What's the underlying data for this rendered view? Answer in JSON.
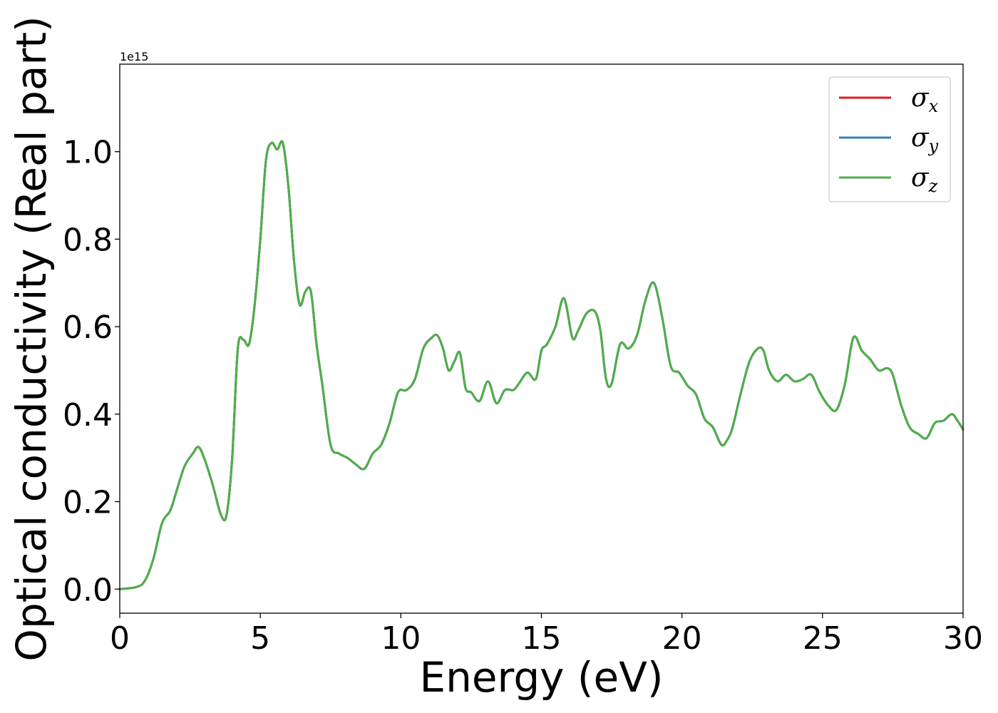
{
  "chart_data": {
    "type": "line",
    "title": "",
    "xlabel": "Energy (eV)",
    "ylabel": "Optical conductivity (Real part)",
    "y_offset_text": "1e15",
    "xlim": [
      0,
      30
    ],
    "ylim": [
      -0.055,
      1.2
    ],
    "x_ticks": [
      0,
      5,
      10,
      15,
      20,
      25,
      30
    ],
    "x_tick_labels": [
      "0",
      "5",
      "10",
      "15",
      "20",
      "25",
      "30"
    ],
    "y_ticks": [
      0.0,
      0.2,
      0.4,
      0.6,
      0.8,
      1.0
    ],
    "y_tick_labels": [
      "0.0",
      "0.2",
      "0.4",
      "0.6",
      "0.8",
      "1.0"
    ],
    "grid": false,
    "legend_position": "top-right",
    "x": [
      0,
      0.6,
      0.9,
      1.2,
      1.5,
      1.8,
      2.0,
      2.3,
      2.6,
      2.8,
      3.0,
      3.3,
      3.6,
      3.8,
      4.0,
      4.2,
      4.4,
      4.6,
      4.8,
      5.0,
      5.2,
      5.4,
      5.6,
      5.8,
      6.0,
      6.2,
      6.4,
      6.6,
      6.8,
      7.0,
      7.2,
      7.5,
      7.8,
      8.1,
      8.4,
      8.7,
      9.0,
      9.3,
      9.6,
      9.9,
      10.2,
      10.5,
      10.8,
      11.1,
      11.3,
      11.5,
      11.7,
      11.9,
      12.1,
      12.3,
      12.5,
      12.8,
      13.1,
      13.4,
      13.7,
      14.0,
      14.2,
      14.5,
      14.8,
      15.0,
      15.2,
      15.5,
      15.8,
      16.1,
      16.3,
      16.6,
      16.9,
      17.1,
      17.3,
      17.5,
      17.8,
      18.1,
      18.4,
      18.7,
      19.0,
      19.3,
      19.6,
      19.9,
      20.2,
      20.5,
      20.8,
      21.1,
      21.4,
      21.6,
      21.8,
      22.1,
      22.4,
      22.7,
      22.9,
      23.1,
      23.4,
      23.7,
      24.0,
      24.3,
      24.6,
      24.9,
      25.2,
      25.5,
      25.8,
      26.1,
      26.4,
      26.7,
      27.0,
      27.3,
      27.5,
      27.8,
      28.1,
      28.4,
      28.7,
      29.0,
      29.3,
      29.6,
      29.8,
      30.0
    ],
    "series": [
      {
        "name": "σx",
        "color": "#e41a1c",
        "values": [
          0.0,
          0.005,
          0.02,
          0.07,
          0.15,
          0.18,
          0.22,
          0.28,
          0.31,
          0.325,
          0.3,
          0.24,
          0.17,
          0.17,
          0.3,
          0.55,
          0.57,
          0.56,
          0.65,
          0.8,
          0.98,
          1.02,
          1.005,
          1.02,
          0.92,
          0.75,
          0.65,
          0.68,
          0.68,
          0.56,
          0.47,
          0.33,
          0.31,
          0.3,
          0.285,
          0.275,
          0.31,
          0.33,
          0.38,
          0.45,
          0.455,
          0.48,
          0.55,
          0.575,
          0.58,
          0.55,
          0.5,
          0.52,
          0.54,
          0.46,
          0.45,
          0.43,
          0.475,
          0.425,
          0.455,
          0.455,
          0.47,
          0.495,
          0.48,
          0.545,
          0.56,
          0.6,
          0.665,
          0.575,
          0.59,
          0.63,
          0.635,
          0.59,
          0.48,
          0.47,
          0.56,
          0.55,
          0.58,
          0.66,
          0.7,
          0.62,
          0.51,
          0.495,
          0.465,
          0.445,
          0.39,
          0.37,
          0.33,
          0.34,
          0.37,
          0.45,
          0.52,
          0.55,
          0.545,
          0.5,
          0.475,
          0.49,
          0.475,
          0.48,
          0.49,
          0.45,
          0.42,
          0.41,
          0.47,
          0.575,
          0.545,
          0.525,
          0.5,
          0.505,
          0.49,
          0.42,
          0.37,
          0.355,
          0.345,
          0.38,
          0.385,
          0.4,
          0.385,
          0.365
        ]
      },
      {
        "name": "σy",
        "color": "#377eb8",
        "values": [
          0.0,
          0.005,
          0.02,
          0.07,
          0.15,
          0.18,
          0.22,
          0.28,
          0.31,
          0.325,
          0.3,
          0.24,
          0.17,
          0.17,
          0.3,
          0.55,
          0.57,
          0.56,
          0.65,
          0.8,
          0.98,
          1.02,
          1.005,
          1.02,
          0.92,
          0.75,
          0.65,
          0.68,
          0.68,
          0.56,
          0.47,
          0.33,
          0.31,
          0.3,
          0.285,
          0.275,
          0.31,
          0.33,
          0.38,
          0.45,
          0.455,
          0.48,
          0.55,
          0.575,
          0.58,
          0.55,
          0.5,
          0.52,
          0.54,
          0.46,
          0.45,
          0.43,
          0.475,
          0.425,
          0.455,
          0.455,
          0.47,
          0.495,
          0.48,
          0.545,
          0.56,
          0.6,
          0.665,
          0.575,
          0.59,
          0.63,
          0.635,
          0.59,
          0.48,
          0.47,
          0.56,
          0.55,
          0.58,
          0.66,
          0.7,
          0.62,
          0.51,
          0.495,
          0.465,
          0.445,
          0.39,
          0.37,
          0.33,
          0.34,
          0.37,
          0.45,
          0.52,
          0.55,
          0.545,
          0.5,
          0.475,
          0.49,
          0.475,
          0.48,
          0.49,
          0.45,
          0.42,
          0.41,
          0.47,
          0.575,
          0.545,
          0.525,
          0.5,
          0.505,
          0.49,
          0.42,
          0.37,
          0.355,
          0.345,
          0.38,
          0.385,
          0.4,
          0.385,
          0.365
        ]
      },
      {
        "name": "σz",
        "color": "#4daf4a",
        "values": [
          0.0,
          0.005,
          0.02,
          0.07,
          0.15,
          0.18,
          0.22,
          0.28,
          0.31,
          0.325,
          0.3,
          0.24,
          0.17,
          0.17,
          0.3,
          0.55,
          0.57,
          0.56,
          0.65,
          0.8,
          0.98,
          1.02,
          1.005,
          1.02,
          0.92,
          0.75,
          0.65,
          0.68,
          0.68,
          0.56,
          0.47,
          0.33,
          0.31,
          0.3,
          0.285,
          0.275,
          0.31,
          0.33,
          0.38,
          0.45,
          0.455,
          0.48,
          0.55,
          0.575,
          0.58,
          0.55,
          0.5,
          0.52,
          0.54,
          0.46,
          0.45,
          0.43,
          0.475,
          0.425,
          0.455,
          0.455,
          0.47,
          0.495,
          0.48,
          0.545,
          0.56,
          0.6,
          0.665,
          0.575,
          0.59,
          0.63,
          0.635,
          0.59,
          0.48,
          0.47,
          0.56,
          0.55,
          0.58,
          0.66,
          0.7,
          0.62,
          0.51,
          0.495,
          0.465,
          0.445,
          0.39,
          0.37,
          0.33,
          0.34,
          0.37,
          0.45,
          0.52,
          0.55,
          0.545,
          0.5,
          0.475,
          0.49,
          0.475,
          0.48,
          0.49,
          0.45,
          0.42,
          0.41,
          0.47,
          0.575,
          0.545,
          0.525,
          0.5,
          0.505,
          0.49,
          0.42,
          0.37,
          0.355,
          0.345,
          0.38,
          0.385,
          0.4,
          0.385,
          0.365
        ]
      }
    ],
    "legend": [
      {
        "symbol": "σ",
        "subscript": "x",
        "color": "#e41a1c"
      },
      {
        "symbol": "σ",
        "subscript": "y",
        "color": "#377eb8"
      },
      {
        "symbol": "σ",
        "subscript": "z",
        "color": "#4daf4a"
      }
    ]
  }
}
